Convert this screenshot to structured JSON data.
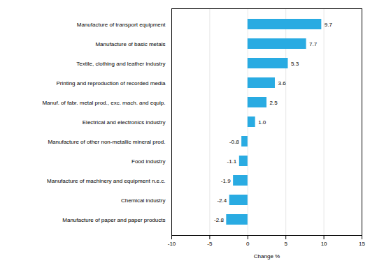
{
  "chart_data": {
    "type": "bar",
    "orientation": "horizontal",
    "categories": [
      "Manufacture of paper and paper products",
      "Chemical industry",
      "Manufacture of machinery and equipment n.e.c.",
      "Food industry",
      "Manufacture of other non-metallic mineral prod.",
      "Electrical and electronics industry",
      "Manuf. of fabr. metal prod., exc. mach. and equip.",
      "Printing and reproduction of recorded media",
      "Textile, clothing and leather industry",
      "Manufacture of basic metals",
      "Manufacture of transport equipment"
    ],
    "values": [
      -2.8,
      -2.4,
      -1.9,
      -1.1,
      -0.8,
      1.0,
      2.5,
      3.6,
      5.3,
      7.7,
      9.7
    ],
    "value_labels": [
      "-2.8",
      "-2.4",
      "-1.9",
      "-1.1",
      "-0.8",
      "1.0",
      "2.5",
      "3.6",
      "5.3",
      "7.7",
      "9.7"
    ],
    "data_labels": true,
    "color": "#29ABE2",
    "xlabel": "Change %",
    "xlim": [
      -10,
      15
    ],
    "xticks": [
      -10,
      -5,
      0,
      5,
      10,
      15
    ],
    "grid": true
  }
}
